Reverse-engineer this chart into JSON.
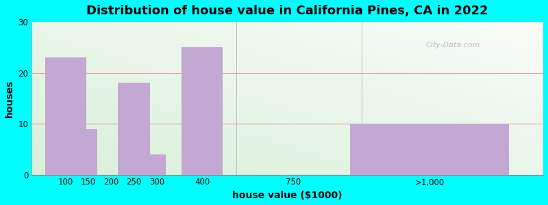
{
  "title": "Distribution of house value in California Pines, CA in 2022",
  "xlabel": "house value ($1000)",
  "ylabel": "houses",
  "bar_color": "#C4A8D4",
  "background_color": "#00FFFF",
  "ylim": [
    0,
    30
  ],
  "yticks": [
    0,
    10,
    20,
    30
  ],
  "title_fontsize": 13,
  "axis_label_fontsize": 10,
  "tick_fontsize": 8.5,
  "watermark": "City-Data.com",
  "categories": [
    "100",
    "150",
    "200",
    "250",
    "300",
    "400",
    "750",
    ">1,000"
  ],
  "values": [
    23,
    9,
    0,
    18,
    4,
    25,
    0,
    10
  ],
  "positions": [
    1,
    2,
    3,
    4,
    5,
    7,
    11,
    17
  ],
  "bar_widths": [
    1.8,
    0.8,
    0,
    1.4,
    0.8,
    1.8,
    0,
    7
  ],
  "tick_pos": [
    1,
    2,
    3,
    4,
    5,
    7,
    11,
    17
  ],
  "xlim": [
    -0.5,
    22
  ]
}
